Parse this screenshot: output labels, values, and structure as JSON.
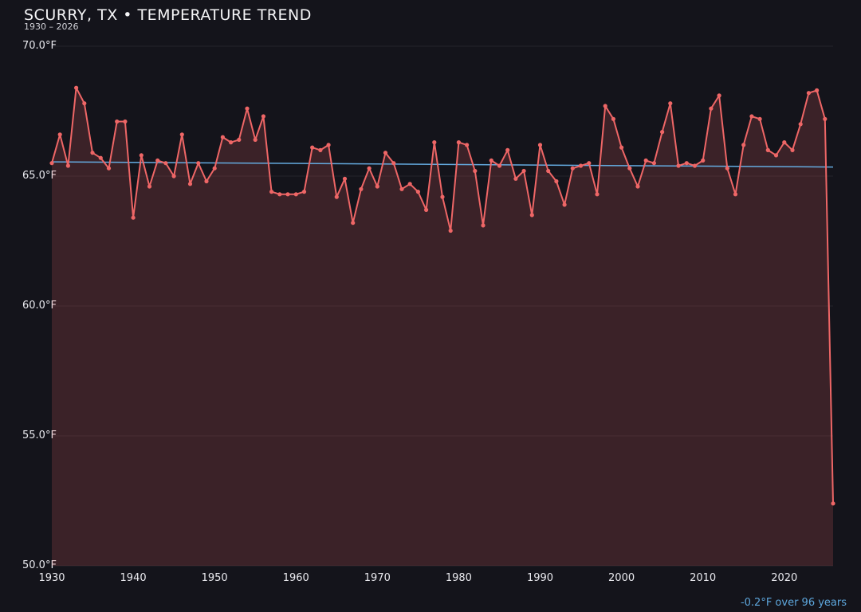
{
  "header": {
    "title": "SCURRY, TX • TEMPERATURE TREND",
    "subtitle": "1930 – 2026"
  },
  "footer": {
    "trend_note": "-0.2°F over 96 years"
  },
  "colors": {
    "background": "#14141b",
    "line": "#ee6666",
    "point": "#ee6666",
    "fill": "rgba(238,102,102,0.18)",
    "trend": "#64aadf",
    "tick_text": "#e9e9ee",
    "grid": "rgba(255,255,255,0.07)",
    "note_text": "#5ea7dd"
  },
  "chart_data": {
    "type": "line",
    "title": "SCURRY, TX • TEMPERATURE TREND",
    "xlabel": "",
    "ylabel": "",
    "ylim": [
      50,
      70
    ],
    "xlim": [
      1930,
      2026
    ],
    "grid": "faint-horizontal",
    "legend": "none",
    "years": [
      1930,
      1931,
      1932,
      1933,
      1934,
      1935,
      1936,
      1937,
      1938,
      1939,
      1940,
      1941,
      1942,
      1943,
      1944,
      1945,
      1946,
      1947,
      1948,
      1949,
      1950,
      1951,
      1952,
      1953,
      1954,
      1955,
      1956,
      1957,
      1958,
      1959,
      1960,
      1961,
      1962,
      1963,
      1964,
      1965,
      1966,
      1967,
      1968,
      1969,
      1970,
      1971,
      1972,
      1973,
      1974,
      1975,
      1976,
      1977,
      1978,
      1979,
      1980,
      1981,
      1982,
      1983,
      1984,
      1985,
      1986,
      1987,
      1988,
      1989,
      1990,
      1991,
      1992,
      1993,
      1994,
      1995,
      1996,
      1997,
      1998,
      1999,
      2000,
      2001,
      2002,
      2003,
      2004,
      2005,
      2006,
      2007,
      2008,
      2009,
      2010,
      2011,
      2012,
      2013,
      2014,
      2015,
      2016,
      2017,
      2018,
      2019,
      2020,
      2021,
      2022,
      2023,
      2024,
      2025,
      2026
    ],
    "series": [
      {
        "name": "annual-mean-temperature-F",
        "values": [
          65.5,
          66.6,
          65.4,
          68.4,
          67.8,
          65.9,
          65.7,
          65.3,
          67.1,
          67.1,
          63.4,
          65.8,
          64.6,
          65.6,
          65.5,
          65.0,
          66.6,
          64.7,
          65.5,
          64.8,
          65.3,
          66.5,
          66.3,
          66.4,
          67.6,
          66.4,
          67.3,
          64.4,
          64.3,
          64.3,
          64.3,
          64.4,
          66.1,
          66.0,
          66.2,
          64.2,
          64.9,
          63.2,
          64.5,
          65.3,
          64.6,
          65.9,
          65.5,
          64.5,
          64.7,
          64.4,
          63.7,
          66.3,
          64.2,
          62.9,
          66.3,
          66.2,
          65.2,
          63.1,
          65.6,
          65.4,
          66.0,
          64.9,
          65.2,
          63.5,
          66.2,
          65.2,
          64.8,
          63.9,
          65.3,
          65.4,
          65.5,
          64.3,
          67.7,
          67.2,
          66.1,
          65.3,
          64.6,
          65.6,
          65.5,
          66.7,
          67.8,
          65.4,
          65.5,
          65.4,
          65.6,
          67.6,
          68.1,
          65.3,
          64.3,
          66.2,
          67.3,
          67.2,
          66.0,
          65.8,
          66.3,
          66.0,
          67.0,
          68.2,
          68.3,
          67.2,
          52.4
        ]
      }
    ],
    "trend_line": {
      "start_value": 65.55,
      "end_value": 65.35,
      "label": "-0.2°F over 96 years"
    },
    "y_ticks": [
      {
        "value": 70,
        "label": "70.0°F"
      },
      {
        "value": 65,
        "label": "65.0°F"
      },
      {
        "value": 60,
        "label": "60.0°F"
      },
      {
        "value": 55,
        "label": "55.0°F"
      },
      {
        "value": 50,
        "label": "50.0°F"
      }
    ],
    "x_ticks": [
      {
        "value": 1930,
        "label": "1930"
      },
      {
        "value": 1940,
        "label": "1940"
      },
      {
        "value": 1950,
        "label": "1950"
      },
      {
        "value": 1960,
        "label": "1960"
      },
      {
        "value": 1970,
        "label": "1970"
      },
      {
        "value": 1980,
        "label": "1980"
      },
      {
        "value": 1990,
        "label": "1990"
      },
      {
        "value": 2000,
        "label": "2000"
      },
      {
        "value": 2010,
        "label": "2010"
      },
      {
        "value": 2020,
        "label": "2020"
      }
    ]
  }
}
